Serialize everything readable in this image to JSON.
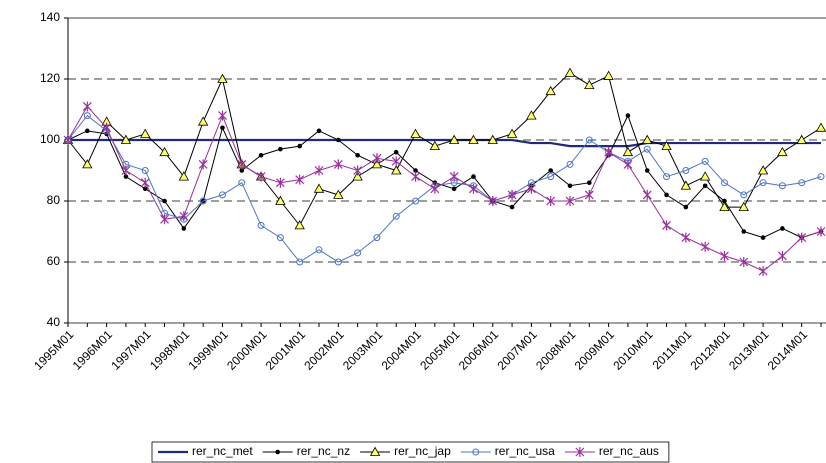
{
  "chart_data": {
    "type": "line",
    "categories": [
      "1995M01",
      null,
      "1996M01",
      null,
      "1997M01",
      null,
      "1998M01",
      null,
      "1999M01",
      null,
      "2000M01",
      null,
      "2001M01",
      null,
      "2002M01",
      null,
      "2003M01",
      null,
      "2004M01",
      null,
      "2005M01",
      null,
      "2006M01",
      null,
      "2007M01",
      null,
      "2008M01",
      null,
      "2009M01",
      null,
      "2010M01",
      null,
      "2011M01",
      null,
      "2012M01",
      null,
      "2013M01",
      null,
      "2014M01",
      null
    ],
    "ylim": [
      40,
      140
    ],
    "yticks": [
      40,
      60,
      80,
      100,
      120,
      140
    ],
    "grid": true,
    "legend": "bottom",
    "series": [
      {
        "name": "rer_nc_met",
        "color": "#1f2a7a",
        "marker": "none",
        "values": [
          100,
          100,
          100,
          100,
          100,
          100,
          100,
          100,
          100,
          100,
          100,
          100,
          100,
          100,
          100,
          100,
          100,
          100,
          100,
          100,
          100,
          100,
          100,
          100,
          99,
          99,
          98,
          98,
          98,
          98,
          99,
          99,
          99,
          99,
          99,
          99,
          99,
          99,
          99,
          99
        ]
      },
      {
        "name": "rer_nc_nz",
        "color": "#000000",
        "marker": "dot",
        "values": [
          100,
          103,
          102,
          88,
          84,
          80,
          71,
          80,
          104,
          90,
          95,
          97,
          98,
          103,
          100,
          95,
          92,
          96,
          90,
          86,
          84,
          88,
          80,
          78,
          85,
          90,
          85,
          86,
          95,
          108,
          90,
          82,
          78,
          85,
          80,
          70,
          68,
          71,
          68,
          70
        ]
      },
      {
        "name": "rer_nc_jap",
        "color": "#ffff66",
        "marker": "triangle",
        "values": [
          100,
          92,
          106,
          100,
          102,
          96,
          88,
          106,
          120,
          92,
          88,
          80,
          72,
          84,
          82,
          88,
          92,
          90,
          102,
          98,
          100,
          100,
          100,
          102,
          108,
          116,
          122,
          118,
          121,
          96,
          100,
          98,
          85,
          88,
          78,
          78,
          90,
          96,
          100,
          104
        ]
      },
      {
        "name": "rer_nc_usa",
        "color": "#4f74c8",
        "marker": "circle",
        "values": [
          100,
          108,
          103,
          92,
          90,
          76,
          74,
          80,
          82,
          86,
          72,
          68,
          60,
          64,
          60,
          63,
          68,
          75,
          80,
          85,
          86,
          85,
          80,
          82,
          86,
          88,
          92,
          100,
          96,
          93,
          97,
          88,
          90,
          93,
          86,
          82,
          86,
          85,
          86,
          88
        ]
      },
      {
        "name": "rer_nc_aus",
        "color": "#9b2f9b",
        "marker": "star",
        "values": [
          100,
          111,
          104,
          90,
          86,
          74,
          75,
          92,
          108,
          92,
          88,
          86,
          87,
          90,
          92,
          90,
          94,
          93,
          88,
          84,
          88,
          84,
          80,
          82,
          84,
          80,
          80,
          82,
          96,
          92,
          82,
          72,
          68,
          65,
          62,
          60,
          57,
          62,
          68,
          70
        ]
      }
    ]
  }
}
